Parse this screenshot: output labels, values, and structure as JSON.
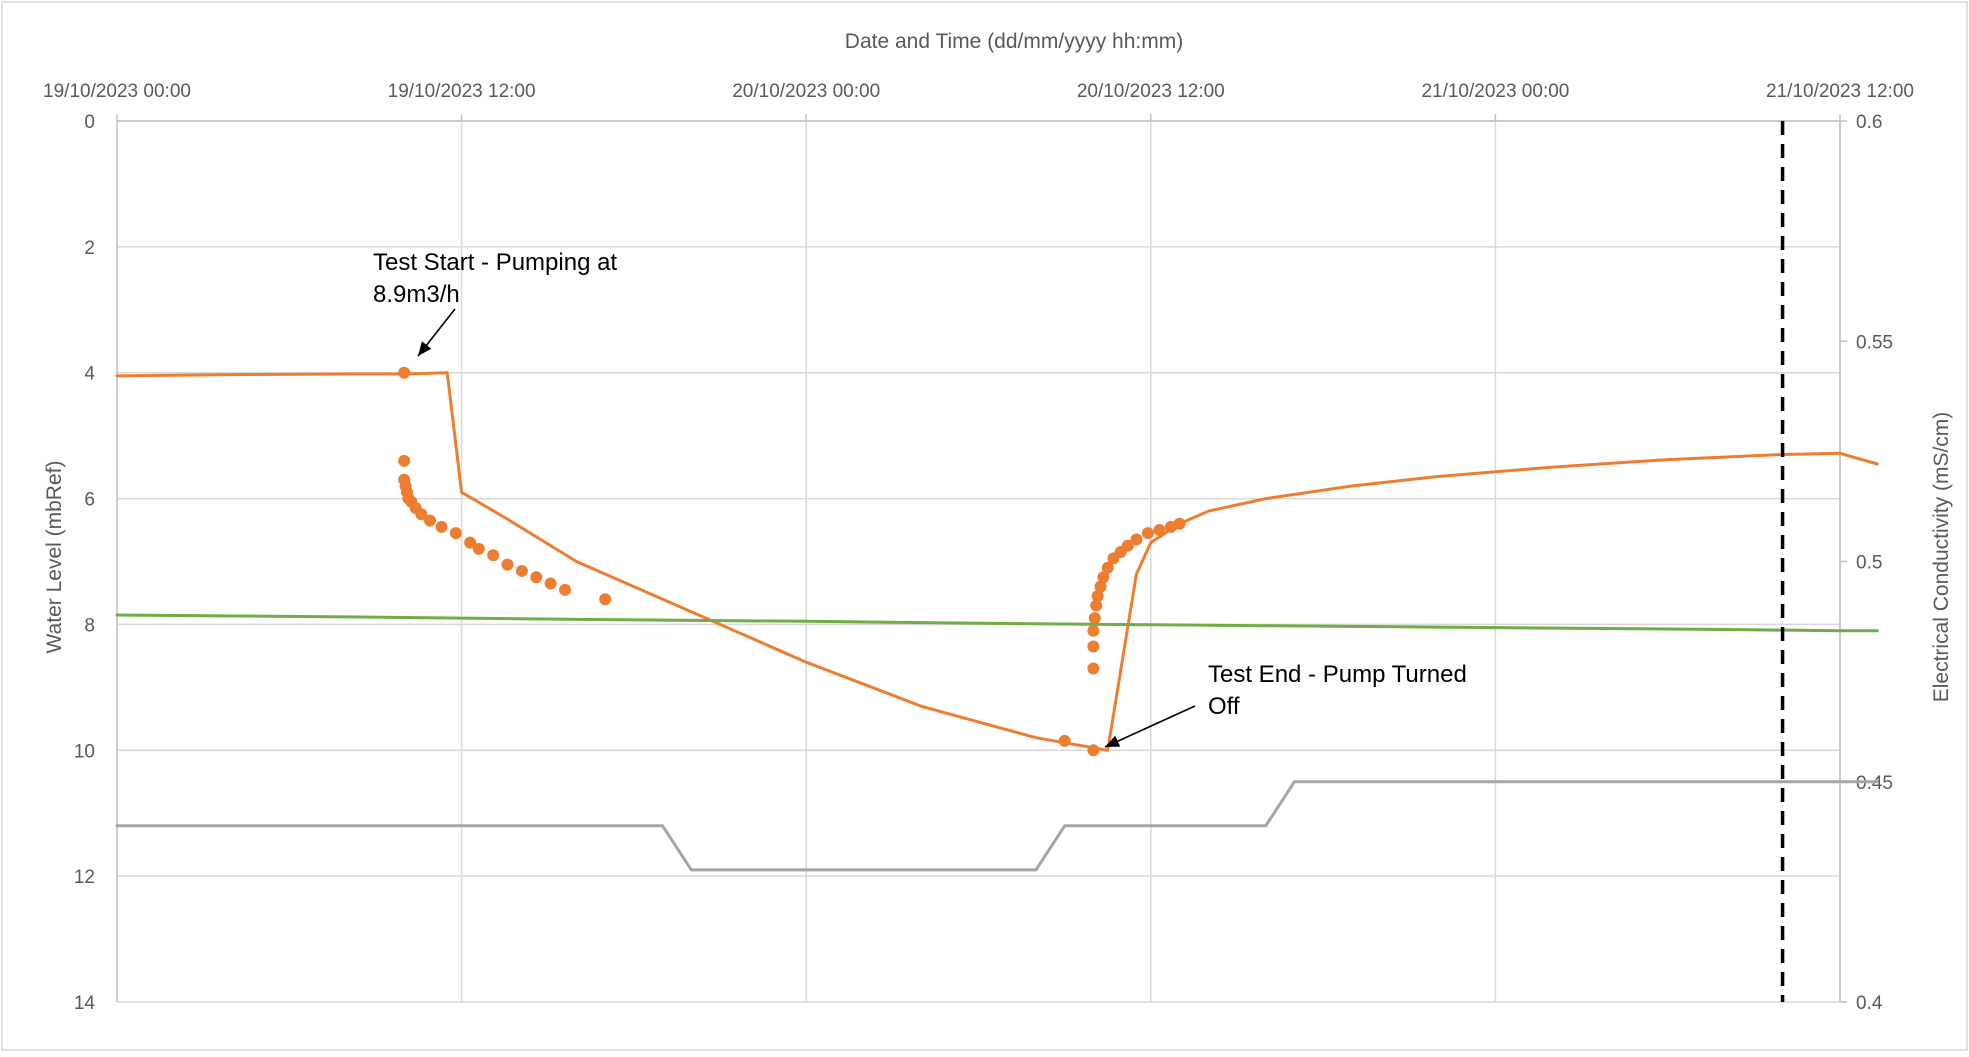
{
  "chart_data": {
    "type": "line",
    "title": "",
    "x_axis": {
      "label": "Date and Time (dd/mm/yyyy hh:mm)",
      "position": "top",
      "unit": "hours",
      "range": [
        0,
        60
      ],
      "ticks": [
        {
          "value": 0,
          "label": "19/10/2023 00:00"
        },
        {
          "value": 12,
          "label": "19/10/2023 12:00"
        },
        {
          "value": 24,
          "label": "20/10/2023 00:00"
        },
        {
          "value": 36,
          "label": "20/10/2023 12:00"
        },
        {
          "value": 48,
          "label": "21/10/2023 00:00"
        },
        {
          "value": 60,
          "label": "21/10/2023 12:00"
        }
      ]
    },
    "y_left": {
      "label": "Water Level (mbRef)",
      "range": [
        0,
        14
      ],
      "inverted": true,
      "ticks": [
        "0",
        "2",
        "4",
        "6",
        "8",
        "10",
        "12",
        "14"
      ]
    },
    "y_right": {
      "label": "Electrical Conductivity (mS/cm)",
      "range": [
        0.4,
        0.6
      ],
      "ticks": [
        "0.4",
        "0.45",
        "0.5",
        "0.55",
        "0.6"
      ]
    },
    "grid": true,
    "legend": "none",
    "series": [
      {
        "key": "water_level",
        "axis": "left",
        "color": "#ED7D31",
        "x": [
          0,
          4,
          8,
          10,
          11.5,
          12,
          13.5,
          16,
          20,
          24,
          28,
          32,
          34.5,
          35.5,
          36,
          37,
          38,
          40,
          43,
          46,
          50,
          54,
          58,
          60,
          61.3
        ],
        "y": [
          4.05,
          4.03,
          4.02,
          4.02,
          4.0,
          5.9,
          6.3,
          7.0,
          7.8,
          8.6,
          9.3,
          9.8,
          10.0,
          7.2,
          6.7,
          6.4,
          6.2,
          6.0,
          5.8,
          5.65,
          5.5,
          5.38,
          5.3,
          5.28,
          5.45
        ],
        "markers": [
          {
            "x": 10.0,
            "y": 4.0
          },
          {
            "x": 10.0,
            "y": 5.4
          },
          {
            "x": 10.0,
            "y": 5.7
          },
          {
            "x": 10.05,
            "y": 5.8
          },
          {
            "x": 10.1,
            "y": 5.9
          },
          {
            "x": 10.15,
            "y": 6.0
          },
          {
            "x": 10.25,
            "y": 6.05
          },
          {
            "x": 10.4,
            "y": 6.15
          },
          {
            "x": 10.6,
            "y": 6.25
          },
          {
            "x": 10.9,
            "y": 6.35
          },
          {
            "x": 11.3,
            "y": 6.45
          },
          {
            "x": 11.8,
            "y": 6.55
          },
          {
            "x": 12.3,
            "y": 6.7
          },
          {
            "x": 12.6,
            "y": 6.8
          },
          {
            "x": 13.1,
            "y": 6.9
          },
          {
            "x": 13.6,
            "y": 7.05
          },
          {
            "x": 14.1,
            "y": 7.15
          },
          {
            "x": 14.6,
            "y": 7.25
          },
          {
            "x": 15.1,
            "y": 7.35
          },
          {
            "x": 15.6,
            "y": 7.45
          },
          {
            "x": 17.0,
            "y": 7.6
          },
          {
            "x": 33.0,
            "y": 9.85
          },
          {
            "x": 34.0,
            "y": 10.0
          },
          {
            "x": 34.0,
            "y": 8.7
          },
          {
            "x": 34.0,
            "y": 8.35
          },
          {
            "x": 34.0,
            "y": 8.1
          },
          {
            "x": 34.05,
            "y": 7.9
          },
          {
            "x": 34.1,
            "y": 7.7
          },
          {
            "x": 34.15,
            "y": 7.55
          },
          {
            "x": 34.25,
            "y": 7.4
          },
          {
            "x": 34.35,
            "y": 7.25
          },
          {
            "x": 34.5,
            "y": 7.1
          },
          {
            "x": 34.7,
            "y": 6.95
          },
          {
            "x": 34.95,
            "y": 6.85
          },
          {
            "x": 35.2,
            "y": 6.75
          },
          {
            "x": 35.5,
            "y": 6.65
          },
          {
            "x": 35.9,
            "y": 6.55
          },
          {
            "x": 36.3,
            "y": 6.5
          },
          {
            "x": 36.7,
            "y": 6.45
          },
          {
            "x": 37.0,
            "y": 6.4
          }
        ]
      },
      {
        "key": "green_series",
        "axis": "left",
        "color": "#70AD47",
        "x": [
          0,
          8,
          16,
          24,
          32,
          40,
          48,
          56,
          60,
          61.3
        ],
        "y": [
          7.85,
          7.88,
          7.92,
          7.95,
          7.99,
          8.02,
          8.05,
          8.08,
          8.1,
          8.1
        ]
      },
      {
        "key": "electrical_conductivity",
        "axis": "right",
        "color": "#A5A5A5",
        "x": [
          0,
          19,
          20,
          32,
          33,
          40,
          41,
          60,
          61.3
        ],
        "y": [
          0.44,
          0.44,
          0.43,
          0.43,
          0.44,
          0.44,
          0.45,
          0.45,
          0.45
        ]
      }
    ],
    "reference_lines": [
      {
        "x": 58,
        "style": "dashed",
        "color": "#000000"
      }
    ],
    "annotations": [
      {
        "text_lines": [
          "Test Start - Pumping at",
          "8.9m3/h"
        ],
        "target": {
          "x": 10.0,
          "y": 4.0
        }
      },
      {
        "text_lines": [
          "Test End - Pump Turned",
          "Off"
        ],
        "target": {
          "x": 34.0,
          "y": 10.0
        }
      }
    ]
  }
}
